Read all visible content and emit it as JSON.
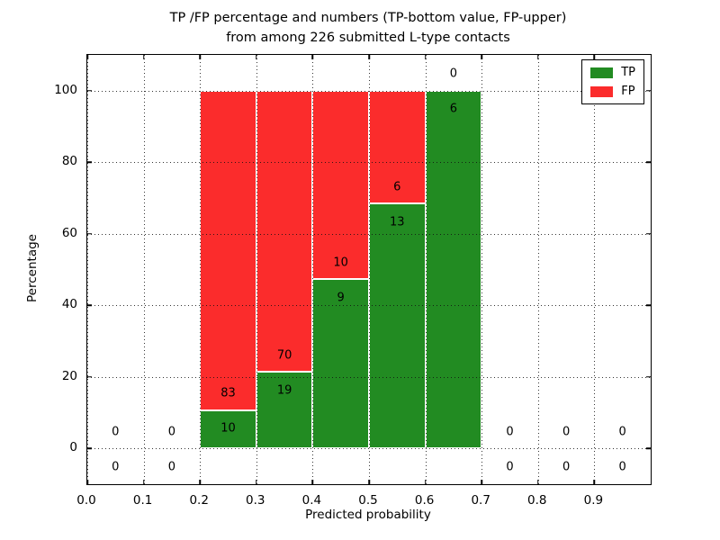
{
  "figure": {
    "title_lines": [
      "TP /FP percentage and numbers (TP-bottom value, FP-upper)",
      "from among 226 submitted L-type contacts"
    ]
  },
  "chart_data": {
    "type": "bar",
    "stacked": true,
    "title": "TP /FP percentage and numbers (TP-bottom value, FP-upper)\nfrom among 226 submitted L-type contacts",
    "xlabel": "Predicted probability",
    "ylabel": "Percentage",
    "xlim": [
      0.0,
      1.0
    ],
    "ylim": [
      -10,
      110
    ],
    "xticks": [
      0.0,
      0.1,
      0.2,
      0.3,
      0.4,
      0.5,
      0.6,
      0.7,
      0.8,
      0.9
    ],
    "xtick_labels": [
      "0.0",
      "0.1",
      "0.2",
      "0.3",
      "0.4",
      "0.5",
      "0.6",
      "0.7",
      "0.8",
      "0.9"
    ],
    "yticks": [
      0,
      20,
      40,
      60,
      80,
      100
    ],
    "ytick_labels": [
      "0",
      "20",
      "40",
      "60",
      "80",
      "100"
    ],
    "grid": true,
    "grid_linestyle": "dotted",
    "total_contacts": 226,
    "legend": {
      "position": "upper-right",
      "entries": [
        {
          "label": "TP",
          "color": "#228b22"
        },
        {
          "label": "FP",
          "color": "#fb2c2c"
        }
      ]
    },
    "bins": [
      {
        "range": [
          0.0,
          0.1
        ],
        "tp": 0,
        "fp": 0
      },
      {
        "range": [
          0.1,
          0.2
        ],
        "tp": 0,
        "fp": 0
      },
      {
        "range": [
          0.2,
          0.3
        ],
        "tp": 10,
        "fp": 83
      },
      {
        "range": [
          0.3,
          0.4
        ],
        "tp": 19,
        "fp": 70
      },
      {
        "range": [
          0.4,
          0.5
        ],
        "tp": 9,
        "fp": 10
      },
      {
        "range": [
          0.5,
          0.6
        ],
        "tp": 13,
        "fp": 6
      },
      {
        "range": [
          0.6,
          0.7
        ],
        "tp": 6,
        "fp": 0
      },
      {
        "range": [
          0.7,
          0.8
        ],
        "tp": 0,
        "fp": 0
      },
      {
        "range": [
          0.8,
          0.9
        ],
        "tp": 0,
        "fp": 0
      },
      {
        "range": [
          0.9,
          1.0
        ],
        "tp": 0,
        "fp": 0
      }
    ],
    "colors": {
      "tp": "#228b22",
      "fp": "#fb2c2c",
      "bar_edge": "#ffffff",
      "grid": "#000000",
      "spine": "#000000",
      "background": "#ffffff",
      "text": "#000000"
    }
  }
}
